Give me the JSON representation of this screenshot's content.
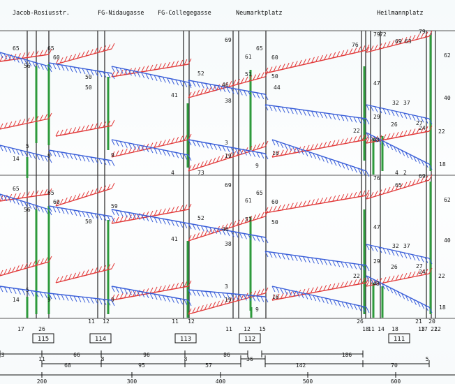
{
  "stops": [
    "Jacob-Rosiusstr.",
    "FG-Nidaugasse",
    "FG-Collegegasse",
    "Neumarktplatz",
    "Heilmannplatz"
  ],
  "top_labels": {
    "a": [
      "65",
      "65",
      "56",
      "60",
      "50",
      "50",
      "41",
      "52",
      "38",
      "46",
      "44",
      "40",
      "61",
      "65",
      "69",
      "60",
      "51",
      "50",
      "47",
      "32",
      "37",
      "29",
      "26",
      "27",
      "24",
      "22",
      "22",
      "62",
      "48",
      "18",
      "5",
      "14",
      "9",
      "9",
      "3",
      "16",
      "19",
      "9",
      "4",
      "73",
      "75"
    ],
    "b": [
      "65",
      "65",
      "56",
      "60",
      "50",
      "59",
      "41",
      "52",
      "38",
      "46",
      "40",
      "61",
      "65",
      "69",
      "60",
      "51",
      "50",
      "47",
      "32",
      "37",
      "29",
      "26",
      "27",
      "24",
      "22",
      "22",
      "62",
      "48",
      "18",
      "5",
      "14",
      "9",
      "9",
      "3",
      "16",
      "19",
      "9",
      "4",
      "2",
      "2"
    ],
    "c": [
      "79",
      "72",
      "79",
      "69",
      "63",
      "76",
      "76",
      "69",
      "65"
    ]
  },
  "blocks": [
    "115",
    "114",
    "113",
    "112",
    "111"
  ],
  "bottom_numbers": [
    "17",
    "26",
    "11",
    "12",
    "11",
    "12",
    "11",
    "12",
    "15",
    "26",
    "18",
    "11",
    "14",
    "18",
    "21",
    "20",
    "17",
    "12",
    "13",
    "22"
  ],
  "distances": [
    "3",
    "66",
    "96",
    "86",
    "186",
    "68",
    "95",
    "57",
    "36",
    "142",
    "70",
    "11",
    "8",
    "8",
    "5"
  ],
  "axis_ticks": [
    "200",
    "300",
    "400",
    "500",
    "600"
  ]
}
